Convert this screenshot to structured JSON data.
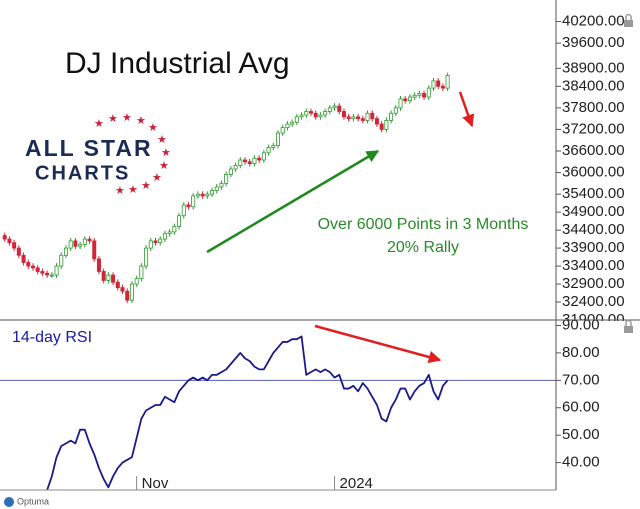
{
  "chart_data": [
    {
      "type": "candlestick",
      "title": "DJ Industrial Avg",
      "annotations": [
        "Over 6000 Points in 3 Months",
        "20% Rally"
      ],
      "up_color": "#2e9b2e",
      "down_color": "#d0263a",
      "xlim": [
        -1,
        117
      ],
      "ylim": [
        31900,
        40800
      ],
      "yticks": [
        {
          "value": 40200,
          "label": "40200.00"
        },
        {
          "value": 39600,
          "label": "39600.00"
        },
        {
          "value": 38900,
          "label": "38900.00"
        },
        {
          "value": 38400,
          "label": "38400.00"
        },
        {
          "value": 37800,
          "label": "37800.00"
        },
        {
          "value": 37200,
          "label": "37200.00"
        },
        {
          "value": 36600,
          "label": "36600.00"
        },
        {
          "value": 36000,
          "label": "36000.00"
        },
        {
          "value": 35400,
          "label": "35400.00"
        },
        {
          "value": 34900,
          "label": "34900.00"
        },
        {
          "value": 34400,
          "label": "34400.00"
        },
        {
          "value": 33900,
          "label": "33900.00"
        },
        {
          "value": 33400,
          "label": "33400.00"
        },
        {
          "value": 32900,
          "label": "32900.00"
        },
        {
          "value": 32400,
          "label": "32400.00"
        },
        {
          "value": 31900,
          "label": "31900.00"
        }
      ],
      "open": [
        34250,
        34150,
        34050,
        33900,
        33700,
        33500,
        33400,
        33350,
        33250,
        33200,
        33150,
        33150,
        33400,
        33700,
        33900,
        34100,
        33950,
        34000,
        34150,
        34100,
        33600,
        33250,
        33000,
        33150,
        32950,
        32800,
        32700,
        32450,
        32900,
        33050,
        33400,
        33900,
        34100,
        34050,
        34150,
        34300,
        34350,
        34500,
        34800,
        35100,
        35050,
        35350,
        35400,
        35350,
        35400,
        35500,
        35600,
        35700,
        35950,
        36100,
        36200,
        36350,
        36300,
        36250,
        36400,
        36350,
        36550,
        36700,
        36750,
        37100,
        37250,
        37350,
        37400,
        37550,
        37600,
        37700,
        37650,
        37550,
        37600,
        37700,
        37800,
        37850,
        37700,
        37550,
        37500,
        37550,
        37500,
        37450,
        37650,
        37500,
        37350,
        37200,
        37450,
        37650,
        37800,
        38050,
        38000,
        38100,
        38150,
        38200,
        38100,
        38350,
        38550,
        38400,
        38350
      ],
      "high": [
        34330,
        34230,
        34130,
        33980,
        33780,
        33580,
        33480,
        33430,
        33330,
        33280,
        33230,
        33480,
        33780,
        33980,
        34180,
        34180,
        34080,
        34230,
        34230,
        34180,
        33680,
        33330,
        33230,
        33230,
        33030,
        32880,
        32780,
        32980,
        33130,
        33480,
        33980,
        34180,
        34180,
        34230,
        34380,
        34430,
        34580,
        34880,
        35180,
        35180,
        35430,
        35480,
        35480,
        35480,
        35580,
        35680,
        35780,
        36030,
        36180,
        36280,
        36430,
        36430,
        36380,
        36480,
        36480,
        36630,
        36780,
        36830,
        37180,
        37330,
        37430,
        37480,
        37630,
        37680,
        37780,
        37780,
        37730,
        37680,
        37780,
        37880,
        37930,
        37930,
        37780,
        37630,
        37630,
        37630,
        37580,
        37730,
        37730,
        37580,
        37430,
        37530,
        37730,
        37880,
        38130,
        38130,
        38180,
        38230,
        38280,
        38280,
        38430,
        38630,
        38630,
        38480,
        38780
      ],
      "low": [
        34070,
        33970,
        33820,
        33620,
        33420,
        33320,
        33270,
        33170,
        33120,
        33070,
        33070,
        33070,
        33320,
        33620,
        33820,
        33870,
        33870,
        33920,
        34020,
        33520,
        33170,
        32920,
        32920,
        32870,
        32720,
        32620,
        32370,
        32370,
        32820,
        32970,
        33320,
        33820,
        33970,
        33970,
        34070,
        34220,
        34270,
        34420,
        34720,
        34970,
        34970,
        35270,
        35270,
        35270,
        35320,
        35420,
        35520,
        35620,
        35870,
        36020,
        36120,
        36220,
        36170,
        36170,
        36270,
        36270,
        36470,
        36620,
        36670,
        37020,
        37170,
        37270,
        37320,
        37470,
        37520,
        37570,
        37470,
        37470,
        37520,
        37620,
        37720,
        37620,
        37470,
        37420,
        37420,
        37420,
        37370,
        37370,
        37420,
        37270,
        37120,
        37120,
        37370,
        37570,
        37720,
        37920,
        37920,
        38020,
        38070,
        38020,
        38020,
        38270,
        38320,
        38270,
        38270
      ],
      "close": [
        34150,
        34050,
        33900,
        33700,
        33500,
        33400,
        33350,
        33250,
        33200,
        33150,
        33150,
        33400,
        33700,
        33900,
        34100,
        33950,
        34000,
        34150,
        34100,
        33600,
        33250,
        33000,
        33150,
        32950,
        32800,
        32700,
        32450,
        32900,
        33050,
        33400,
        33900,
        34100,
        34050,
        34150,
        34300,
        34350,
        34500,
        34800,
        35100,
        35050,
        35350,
        35400,
        35350,
        35400,
        35500,
        35600,
        35700,
        35950,
        36100,
        36200,
        36350,
        36300,
        36250,
        36400,
        36350,
        36550,
        36700,
        36750,
        37100,
        37250,
        37350,
        37400,
        37550,
        37600,
        37700,
        37650,
        37550,
        37600,
        37700,
        37800,
        37850,
        37700,
        37550,
        37500,
        37550,
        37500,
        37450,
        37650,
        37500,
        37350,
        37200,
        37450,
        37650,
        37800,
        38050,
        38000,
        38100,
        38150,
        38200,
        38100,
        38350,
        38550,
        38400,
        38350,
        38700
      ]
    },
    {
      "type": "line",
      "title": "14-day RSI",
      "color": "#1a1a8c",
      "reference_line": 70,
      "xlim": [
        -1,
        117
      ],
      "ylim": [
        30,
        92
      ],
      "xticks": [
        {
          "value": 28,
          "label": "Nov"
        },
        {
          "value": 70,
          "label": "2024"
        }
      ],
      "yticks": [
        {
          "value": 90,
          "label": "90.00"
        },
        {
          "value": 80,
          "label": "80.00"
        },
        {
          "value": 70,
          "label": "70.00"
        },
        {
          "value": 60,
          "label": "60.00"
        },
        {
          "value": 50,
          "label": "50.00"
        },
        {
          "value": 40,
          "label": "40.00"
        }
      ],
      "values": [
        null,
        null,
        null,
        null,
        null,
        null,
        null,
        null,
        null,
        30,
        35,
        42,
        46,
        47,
        48,
        47,
        52,
        52,
        47,
        43,
        38,
        34,
        31,
        35,
        38,
        40,
        41,
        42,
        49,
        56,
        59,
        60,
        61,
        61,
        64,
        63,
        62,
        66,
        68,
        70,
        71,
        70,
        71,
        70,
        72,
        72,
        73,
        74,
        76,
        78,
        80,
        78,
        77,
        75,
        74,
        74,
        77,
        80,
        82,
        84,
        84,
        85,
        85,
        86,
        72,
        73,
        74,
        73,
        74,
        73,
        71,
        72,
        67,
        67,
        68,
        66,
        69,
        67,
        64,
        61,
        56,
        55,
        60,
        63,
        67,
        67,
        63,
        66,
        68,
        69,
        72,
        66,
        63,
        68,
        70
      ]
    }
  ],
  "logo": [
    "ALL STAR",
    "CHARTS"
  ],
  "footer": "Optuma"
}
